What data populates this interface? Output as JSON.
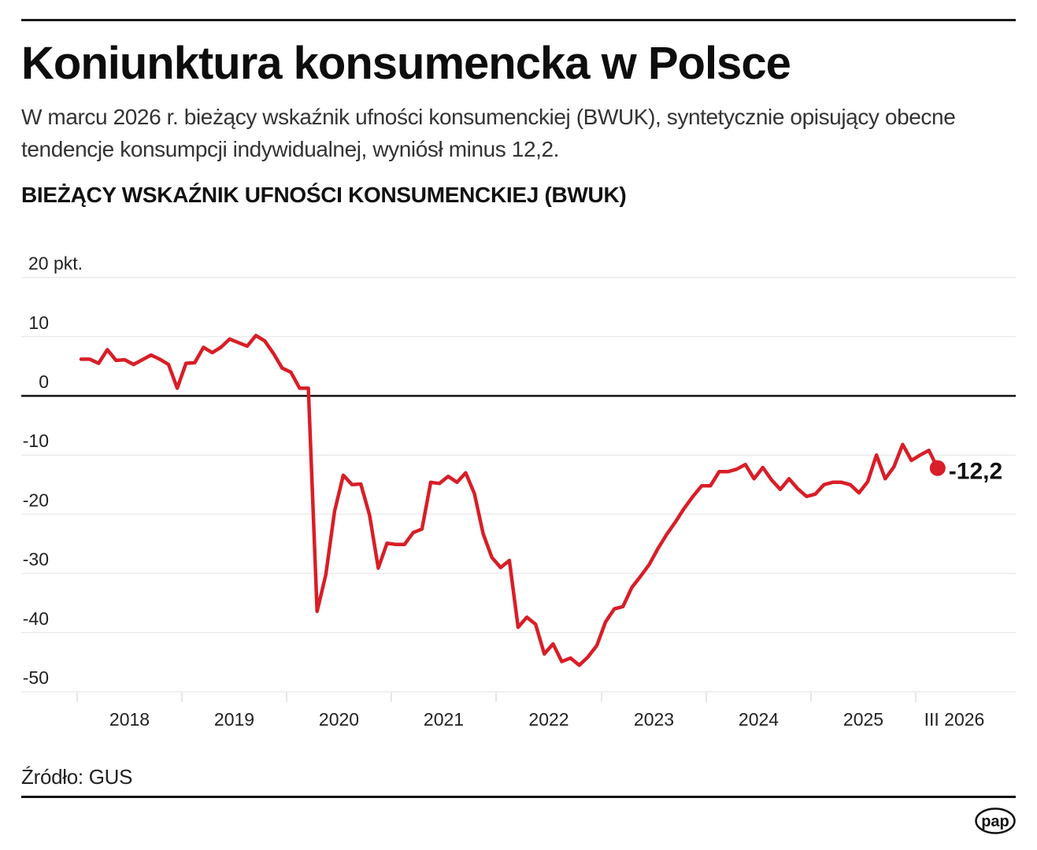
{
  "header": {
    "title": "Koniunktura konsumencka w Polsce",
    "lead": "W marcu 2026 r. bieżący wskaźnik ufności konsumenckiej (BWUK), syntetycznie opisujący obecne tendencje konsumpcji indywidualnej, wyniósł minus 12,2."
  },
  "chart_title": "BIEŻĄCY WSKAŹNIK UFNOŚCI KONSUMENCKIEJ (BWUK)",
  "footer": {
    "source": "Źródło: GUS",
    "logo_text": "pap"
  },
  "colors": {
    "line": "#d81e27",
    "zero_line": "#111111",
    "grid": "#ebebeb",
    "text": "#222222"
  },
  "chart_data": {
    "type": "line",
    "title": "BIEŻĄCY WSKAŹNIK UFNOŚCI KONSUMENCKIEJ (BWUK)",
    "xlabel": "",
    "ylabel": "pkt.",
    "ylim": [
      -50,
      20
    ],
    "yticks": [
      20,
      10,
      0,
      -10,
      -20,
      -30,
      -40,
      -50
    ],
    "ytick_labels": [
      "20 pkt.",
      "10",
      "0",
      "-10",
      "-20",
      "-30",
      "-40",
      "-50"
    ],
    "xtick_labels": [
      "2018",
      "2019",
      "2020",
      "2021",
      "2022",
      "2023",
      "2024",
      "2025",
      "III 2026"
    ],
    "grid": true,
    "legend": null,
    "x_start": "2018-01",
    "x_end": "2026-03",
    "frequency": "monthly",
    "series": [
      {
        "name": "BWUK",
        "values": [
          6.2,
          6.2,
          5.5,
          7.8,
          6.0,
          6.1,
          5.3,
          6.1,
          6.9,
          6.2,
          5.3,
          1.3,
          5.5,
          5.6,
          8.2,
          7.3,
          8.2,
          9.6,
          9.0,
          8.4,
          10.2,
          9.3,
          7.2,
          4.7,
          4.0,
          1.3,
          1.3,
          -36.4,
          -30.2,
          -19.5,
          -13.4,
          -15.0,
          -14.9,
          -20.1,
          -29.1,
          -24.9,
          -25.1,
          -25.1,
          -23.1,
          -22.5,
          -14.6,
          -14.8,
          -13.6,
          -14.6,
          -13.0,
          -16.5,
          -23.3,
          -27.3,
          -29.0,
          -27.8,
          -39.1,
          -37.4,
          -38.6,
          -43.6,
          -41.9,
          -44.9,
          -44.3,
          -45.5,
          -44.1,
          -42.2,
          -38.2,
          -36.0,
          -35.6,
          -32.4,
          -30.5,
          -28.5,
          -25.8,
          -23.4,
          -21.3,
          -19.0,
          -17.0,
          -15.2,
          -15.2,
          -12.8,
          -12.8,
          -12.4,
          -11.6,
          -14.0,
          -12.1,
          -14.2,
          -15.8,
          -14.0,
          -15.7,
          -17.0,
          -16.6,
          -15.0,
          -14.6,
          -14.6,
          -15.0,
          -16.4,
          -14.5,
          -10.0,
          -14.0,
          -12.0,
          -8.2,
          -10.9,
          -10.0,
          -9.2,
          -12.2
        ]
      }
    ],
    "annotations": [
      {
        "label": "-12,2",
        "x": "2026-03",
        "y": -12.2
      }
    ]
  }
}
